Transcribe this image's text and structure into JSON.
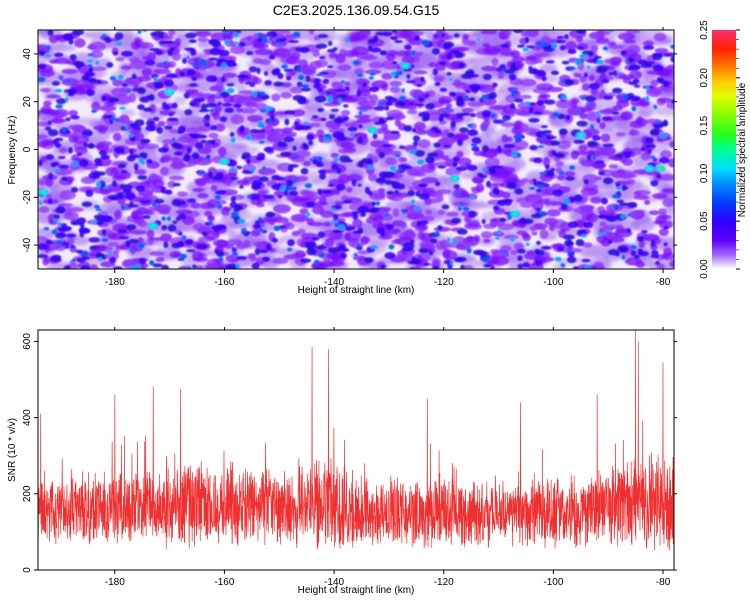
{
  "title": "C2E3.2025.136.09.54.G15",
  "colors": {
    "snr_line": "#f03030",
    "colormap": [
      "#f0e8f8",
      "#c8a8f0",
      "#8800ff",
      "#4400ff",
      "#0040ff",
      "#00c0ff",
      "#00ff80",
      "#40ff00",
      "#ffff00",
      "#ff8000",
      "#ff0000",
      "#ff3366"
    ]
  },
  "chart_data": [
    {
      "type": "heatmap",
      "xlabel": "Height of straight line (km)",
      "ylabel": "Frequency (Hz)",
      "xlim": [
        -194,
        -78
      ],
      "ylim": [
        -50,
        50
      ],
      "xticks": [
        -180,
        -160,
        -140,
        -120,
        -100,
        -80
      ],
      "yticks": [
        -40,
        -20,
        0,
        20,
        40
      ],
      "colorbar": {
        "label": "Normalized spectral amplitude",
        "range": [
          0,
          0.25
        ],
        "ticks": [
          "0.00",
          "0.05",
          "0.10",
          "0.15",
          "0.20",
          "0.25"
        ]
      },
      "hotspots": [
        {
          "x": -80.5,
          "y": -8,
          "value": 0.1
        },
        {
          "x": -82.5,
          "y": -8,
          "value": 0.09
        },
        {
          "x": -133,
          "y": 8,
          "value": 0.08
        },
        {
          "x": -118,
          "y": -12,
          "value": 0.07
        },
        {
          "x": -173,
          "y": -32,
          "value": 0.07
        },
        {
          "x": -170,
          "y": 24,
          "value": 0.06
        },
        {
          "x": -160,
          "y": -5,
          "value": 0.06
        },
        {
          "x": -127,
          "y": 35,
          "value": 0.06
        },
        {
          "x": -107,
          "y": -27,
          "value": 0.06
        },
        {
          "x": -95,
          "y": 6,
          "value": 0.06
        },
        {
          "x": -193,
          "y": -18,
          "value": 0.06
        }
      ]
    },
    {
      "type": "line",
      "xlabel": "Height of straight line (km)",
      "ylabel": "SNR (10 * v/v)",
      "xlim": [
        -194,
        -78
      ],
      "ylim": [
        0,
        630
      ],
      "xticks": [
        -180,
        -160,
        -140,
        -120,
        -100,
        -80
      ],
      "yticks": [
        0,
        200,
        400,
        600
      ],
      "envelope": {
        "x": [
          -194,
          -185,
          -175,
          -168,
          -160,
          -150,
          -143,
          -135,
          -125,
          -115,
          -105,
          -95,
          -88,
          -82,
          -78
        ],
        "mean": [
          150,
          160,
          165,
          175,
          170,
          165,
          175,
          155,
          150,
          145,
          145,
          150,
          165,
          180,
          175
        ],
        "spread": [
          90,
          100,
          110,
          130,
          115,
          110,
          140,
          105,
          100,
          95,
          95,
          110,
          130,
          140,
          130
        ]
      },
      "peaks": [
        {
          "x": -193.5,
          "y": 410
        },
        {
          "x": -180,
          "y": 460
        },
        {
          "x": -173,
          "y": 480
        },
        {
          "x": -168,
          "y": 475
        },
        {
          "x": -144,
          "y": 585
        },
        {
          "x": -141,
          "y": 580
        },
        {
          "x": -123,
          "y": 450
        },
        {
          "x": -106,
          "y": 440
        },
        {
          "x": -92,
          "y": 460
        },
        {
          "x": -85,
          "y": 630
        },
        {
          "x": -84.5,
          "y": 600
        },
        {
          "x": -80,
          "y": 545
        }
      ]
    }
  ]
}
